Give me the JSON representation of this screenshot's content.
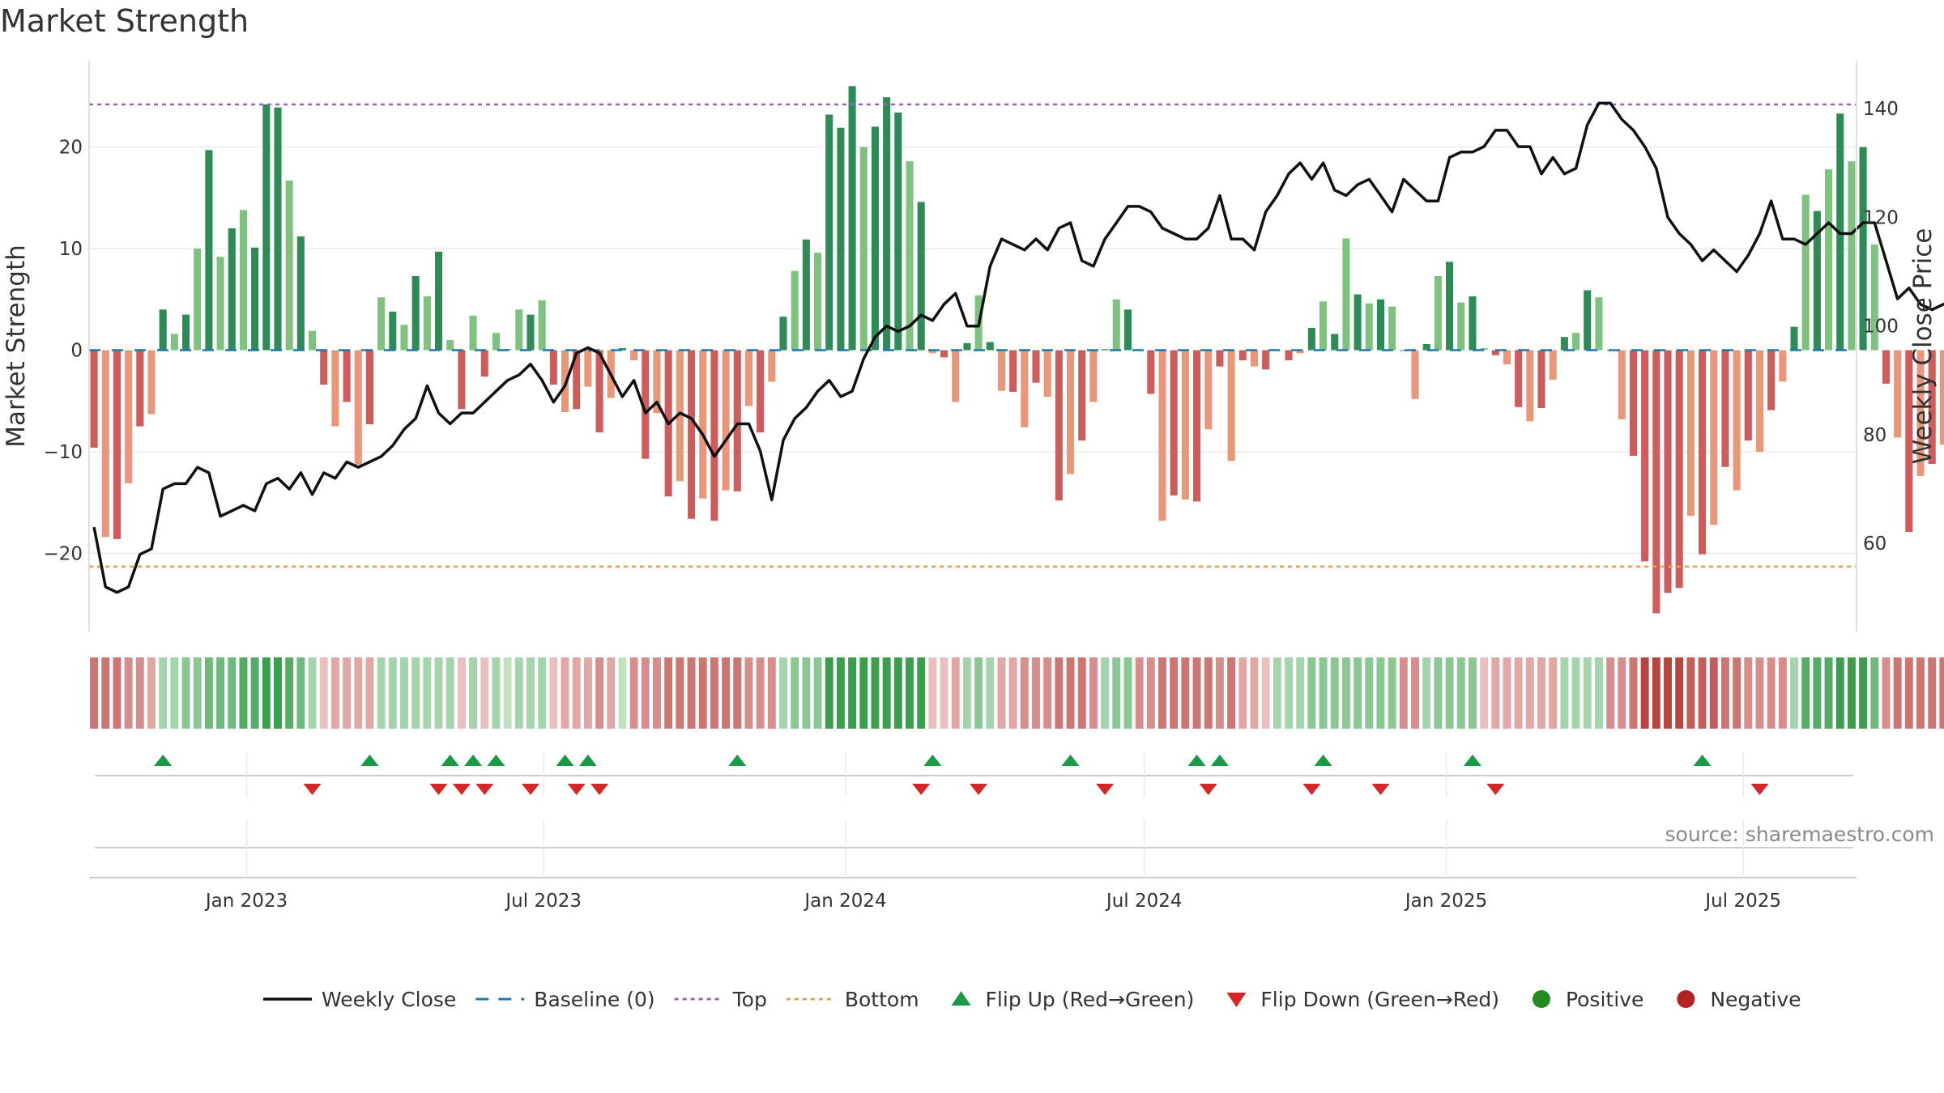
{
  "title": "Market Strength",
  "source": "source: sharemaestro.com",
  "chart_data": {
    "type": "bar",
    "title": "Market Strength",
    "ylabel": "Market Strength",
    "y2label": "Weekly Close Price",
    "x_start": "2022-09-30",
    "x_interval": "weekly",
    "xlim": [
      "2022-09-27",
      "2025-09-08"
    ],
    "ylim": [
      -27.7,
      28.5
    ],
    "y2lim": [
      43.8,
      148.8
    ],
    "yticks": [
      -20,
      -10,
      0,
      10,
      20
    ],
    "yticklabels": [
      "−20",
      "−10",
      "0",
      "10",
      "20"
    ],
    "y2ticks": [
      60,
      80,
      100,
      120,
      140
    ],
    "y2ticklabels": [
      "60",
      "80",
      "100",
      "120",
      "140"
    ],
    "xticks": [
      "2023-01-01",
      "2023-07-01",
      "2024-01-01",
      "2024-07-01",
      "2025-01-01",
      "2025-07-01"
    ],
    "xticklabels": [
      "Jan 2023",
      "Jul 2023",
      "Jan 2024",
      "Jul 2024",
      "Jan 2025",
      "Jul 2025"
    ],
    "top_level": 24.2,
    "bottom_level": -21.3,
    "colors": {
      "strong_positive": "#2e8b57",
      "weak_positive": "#7fc27f",
      "strong_negative": "#cd5c5c",
      "weak_negative": "#e9967a",
      "line": "#111111",
      "baseline": "#1f77b4",
      "top": "#9467bd",
      "bottom": "#e8a050",
      "flip_up": "#1a9a45",
      "flip_down": "#d62728",
      "positive": "#228b22",
      "negative": "#b22222"
    },
    "strength": [
      -9.6,
      -18.4,
      -18.6,
      -13.1,
      -7.5,
      -6.3,
      4.0,
      1.6,
      3.5,
      10.0,
      19.7,
      9.2,
      12.0,
      13.8,
      10.1,
      24.2,
      23.9,
      16.7,
      11.2,
      1.9,
      -3.4,
      -7.5,
      -5.1,
      -11.3,
      -7.3,
      5.2,
      3.8,
      2.5,
      7.3,
      5.3,
      9.7,
      1.0,
      -5.8,
      3.4,
      -2.6,
      1.7,
      0.1,
      4.0,
      3.5,
      4.9,
      -3.4,
      -6.1,
      -5.8,
      -3.6,
      -8.1,
      -4.7,
      0.2,
      -1.0,
      -10.7,
      -6.2,
      -14.4,
      -12.9,
      -16.6,
      -14.6,
      -16.8,
      -13.8,
      -13.9,
      -5.5,
      -8.1,
      -3.1,
      3.3,
      7.8,
      10.9,
      9.6,
      23.2,
      21.9,
      26.0,
      20.0,
      22.0,
      24.9,
      23.4,
      18.6,
      14.6,
      -0.3,
      -0.7,
      -5.1,
      0.7,
      5.4,
      0.8,
      -4.0,
      -4.1,
      -7.6,
      -3.2,
      -4.6,
      -14.8,
      -12.2,
      -8.9,
      -5.1,
      0.1,
      5.0,
      4.0,
      0.0,
      -4.3,
      -16.8,
      -14.3,
      -14.7,
      -14.9,
      -7.8,
      -1.6,
      -10.9,
      -1.0,
      -1.6,
      -1.9,
      0.0,
      -1.0,
      -0.3,
      2.2,
      4.8,
      1.6,
      11.0,
      5.5,
      4.6,
      5.0,
      4.3,
      0.0,
      -4.8,
      0.6,
      7.3,
      8.7,
      4.7,
      5.3,
      0.2,
      -0.5,
      -1.4,
      -5.6,
      -7.0,
      -5.7,
      -2.9,
      1.3,
      1.7,
      5.9,
      5.2,
      0.0,
      -6.8,
      -10.4,
      -20.8,
      -25.9,
      -23.9,
      -23.4,
      -16.3,
      -20.1,
      -17.2,
      -11.5,
      -13.8,
      -8.9,
      -10.0,
      -5.9,
      -3.1,
      2.3,
      15.3,
      13.7,
      17.8,
      23.3,
      18.6,
      20.0,
      10.4,
      -3.3,
      -8.6,
      -17.9,
      -12.4,
      -11.2,
      -9.3,
      -11.2,
      -14.3,
      -16.0,
      -13.2
    ],
    "weekly_close": [
      63,
      52,
      51,
      52,
      58,
      59,
      70,
      71,
      71,
      74,
      73,
      65,
      66,
      67,
      66,
      71,
      72,
      70,
      73,
      69,
      73,
      72,
      75,
      74,
      75,
      76,
      78,
      81,
      83,
      89,
      84,
      82,
      84,
      84,
      86,
      88,
      90,
      91,
      93,
      90,
      86,
      89,
      95,
      96,
      95,
      91,
      87,
      90,
      84,
      86,
      82,
      84,
      83,
      80,
      76,
      79,
      82,
      82,
      77,
      68,
      79,
      83,
      85,
      88,
      90,
      87,
      88,
      94,
      98,
      100,
      99,
      100,
      102,
      101,
      104,
      106,
      100,
      100,
      111,
      116,
      115,
      114,
      116,
      114,
      118,
      119,
      112,
      111,
      116,
      119,
      122,
      122,
      121,
      118,
      117,
      116,
      116,
      118,
      124,
      116,
      116,
      114,
      121,
      124,
      128,
      130,
      127,
      130,
      125,
      124,
      126,
      127,
      124,
      121,
      127,
      125,
      123,
      123,
      131,
      132,
      132,
      133,
      136,
      136,
      133,
      133,
      128,
      131,
      128,
      129,
      137,
      141,
      141,
      138,
      136,
      133,
      129,
      120,
      117,
      115,
      112,
      114,
      112,
      110,
      113,
      117,
      123,
      116,
      116,
      115,
      117,
      119,
      117,
      117,
      119,
      119,
      112,
      105,
      107,
      104,
      103,
      104,
      104,
      105,
      106,
      104,
      100,
      102
    ],
    "strip_levels": [
      -0.4,
      -0.4,
      -0.4,
      -0.3,
      -0.3,
      -0.2,
      0.2,
      0.2,
      0.3,
      0.3,
      0.4,
      0.4,
      0.4,
      0.5,
      0.5,
      0.6,
      0.6,
      0.5,
      0.4,
      0.2,
      -0.1,
      -0.2,
      -0.2,
      -0.2,
      -0.2,
      0.2,
      0.2,
      0.2,
      0.2,
      0.2,
      0.2,
      0.2,
      -0.1,
      0.2,
      -0.1,
      0.2,
      0.1,
      0.2,
      0.2,
      0.2,
      -0.1,
      -0.2,
      -0.2,
      -0.2,
      -0.3,
      -0.2,
      0.1,
      -0.3,
      -0.3,
      -0.3,
      -0.4,
      -0.4,
      -0.4,
      -0.4,
      -0.4,
      -0.4,
      -0.4,
      -0.3,
      -0.3,
      -0.3,
      0.2,
      0.3,
      0.3,
      0.3,
      0.6,
      0.6,
      0.6,
      0.6,
      0.6,
      0.6,
      0.6,
      0.6,
      0.6,
      -0.1,
      -0.1,
      -0.2,
      0.2,
      0.3,
      0.2,
      -0.2,
      -0.2,
      -0.3,
      -0.3,
      -0.3,
      -0.4,
      -0.4,
      -0.4,
      -0.3,
      0.2,
      0.3,
      0.3,
      -0.3,
      -0.3,
      -0.4,
      -0.4,
      -0.4,
      -0.4,
      -0.4,
      -0.3,
      -0.4,
      -0.2,
      -0.2,
      -0.1,
      0.2,
      0.2,
      0.2,
      0.3,
      0.3,
      0.3,
      0.3,
      0.3,
      0.3,
      0.3,
      0.3,
      -0.3,
      -0.3,
      0.2,
      0.3,
      0.3,
      0.3,
      0.3,
      -0.1,
      -0.2,
      -0.2,
      -0.2,
      -0.2,
      -0.2,
      -0.2,
      0.2,
      0.2,
      0.2,
      0.2,
      -0.3,
      -0.3,
      -0.4,
      -0.6,
      -0.6,
      -0.6,
      -0.6,
      -0.5,
      -0.5,
      -0.5,
      -0.4,
      -0.4,
      -0.3,
      -0.3,
      -0.3,
      -0.3,
      0.2,
      0.5,
      0.5,
      0.5,
      0.6,
      0.6,
      0.6,
      0.4,
      -0.3,
      -0.4,
      -0.4,
      -0.4,
      -0.4,
      -0.4,
      -0.4,
      -0.4,
      -0.4,
      -0.4
    ],
    "flip_up_dates": [
      "2022-11-11",
      "2023-03-17",
      "2023-05-05",
      "2023-05-19",
      "2023-06-02",
      "2023-07-14",
      "2023-07-28",
      "2023-10-27",
      "2024-02-23",
      "2024-05-17",
      "2024-08-02",
      "2024-08-16",
      "2024-10-18",
      "2025-01-17",
      "2025-06-06"
    ],
    "flip_down_dates": [
      "2023-02-10",
      "2023-04-28",
      "2023-05-12",
      "2023-05-26",
      "2023-06-23",
      "2023-07-21",
      "2023-08-04",
      "2024-02-16",
      "2024-03-22",
      "2024-06-07",
      "2024-08-09",
      "2024-10-11",
      "2024-11-22",
      "2025-01-31",
      "2025-07-11"
    ],
    "legend_placement": "bottom-center",
    "legend": [
      {
        "label": "Weekly Close",
        "kind": "line"
      },
      {
        "label": "Baseline (0)",
        "kind": "dashed"
      },
      {
        "label": "Top",
        "kind": "dotted-top"
      },
      {
        "label": "Bottom",
        "kind": "dotted-bottom"
      },
      {
        "label": "Flip Up (Red→Green)",
        "kind": "triangle-up"
      },
      {
        "label": "Flip Down (Green→Red)",
        "kind": "triangle-down"
      },
      {
        "label": "Positive",
        "kind": "dot-positive"
      },
      {
        "label": "Negative",
        "kind": "dot-negative"
      }
    ]
  }
}
